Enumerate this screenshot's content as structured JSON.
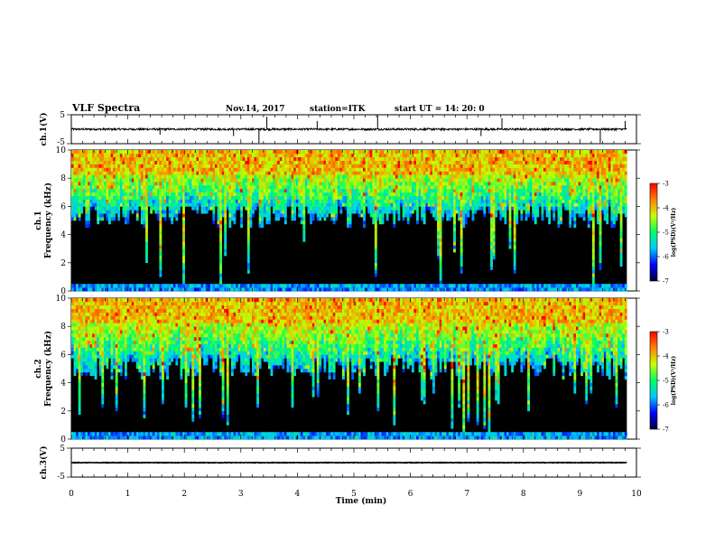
{
  "header": {
    "title": "VLF Spectra",
    "date": "Nov.14, 2017",
    "station": "station=ITK",
    "start_ut": "start  UT  =   14: 20: 0"
  },
  "colors": {
    "spectrogram_background": "#000000",
    "colormap": [
      "#00003a",
      "#0000ff",
      "#00c8ff",
      "#00ff64",
      "#c8ff00",
      "#ff8000",
      "#ff0000"
    ]
  },
  "chart_data": [
    {
      "type": "line",
      "name": "ch1-waveform",
      "ylabel": "ch.1(V)",
      "yticks": [
        "5",
        "-5"
      ],
      "ylim": [
        -5,
        5
      ],
      "xlim": [
        0,
        10
      ],
      "baseline_v": 0.0,
      "noise_amplitude_v": 1.0,
      "spikes": [
        {
          "t": 3.32,
          "v": -5.0
        },
        {
          "t": 3.46,
          "v": 4.5
        },
        {
          "t": 2.87,
          "v": -2.5
        },
        {
          "t": 5.42,
          "v": 5.0
        },
        {
          "t": 7.62,
          "v": 4.0
        },
        {
          "t": 7.25,
          "v": -2.5
        },
        {
          "t": 9.36,
          "v": -5.0
        },
        {
          "t": 1.57,
          "v": -2.0
        },
        {
          "t": 4.35,
          "v": 3.0
        },
        {
          "t": 9.8,
          "v": 3.0
        }
      ]
    },
    {
      "type": "heatmap",
      "name": "ch1-spectrogram",
      "ylabel": "Frequency (kHz)",
      "channel_label": "ch.1",
      "xlim": [
        0,
        10
      ],
      "ylim": [
        0,
        10
      ],
      "data_tmax_min": 9.83,
      "yticks": [
        "0",
        "2",
        "4",
        "6",
        "8",
        "10"
      ],
      "colorbar": {
        "label": "log(PSD)(V²/Hz)",
        "range": [
          -7,
          -3
        ],
        "ticks": [
          "-3",
          "-4",
          "-5",
          "-6",
          "-7"
        ]
      },
      "quiet_band_top_khz": 6.2,
      "active_band_khz": [
        6,
        10
      ]
    },
    {
      "type": "heatmap",
      "name": "ch2-spectrogram",
      "ylabel": "Frequency (kHz)",
      "channel_label": "ch.2",
      "xlim": [
        0,
        10
      ],
      "ylim": [
        0,
        10
      ],
      "data_tmax_min": 9.83,
      "yticks": [
        "0",
        "2",
        "4",
        "6",
        "8",
        "10"
      ],
      "colorbar": {
        "label": "log(PSD)(V²/Hz)",
        "range": [
          -7,
          -3
        ],
        "ticks": [
          "-3",
          "-4",
          "-5",
          "-6",
          "-7"
        ]
      },
      "quiet_band_top_khz": 6.0,
      "active_band_khz": [
        6,
        10
      ]
    },
    {
      "type": "line",
      "name": "ch3-waveform",
      "ylabel": "ch.3(V)",
      "yticks": [
        "5",
        "-5"
      ],
      "ylim": [
        -5,
        5
      ],
      "xlim": [
        0,
        10
      ],
      "baseline_v": 0.0,
      "noise_amplitude_v": 0.1
    }
  ],
  "xaxis": {
    "label": "Time  (min)",
    "ticks": [
      "0",
      "1",
      "2",
      "3",
      "4",
      "5",
      "6",
      "7",
      "8",
      "9",
      "10"
    ]
  }
}
